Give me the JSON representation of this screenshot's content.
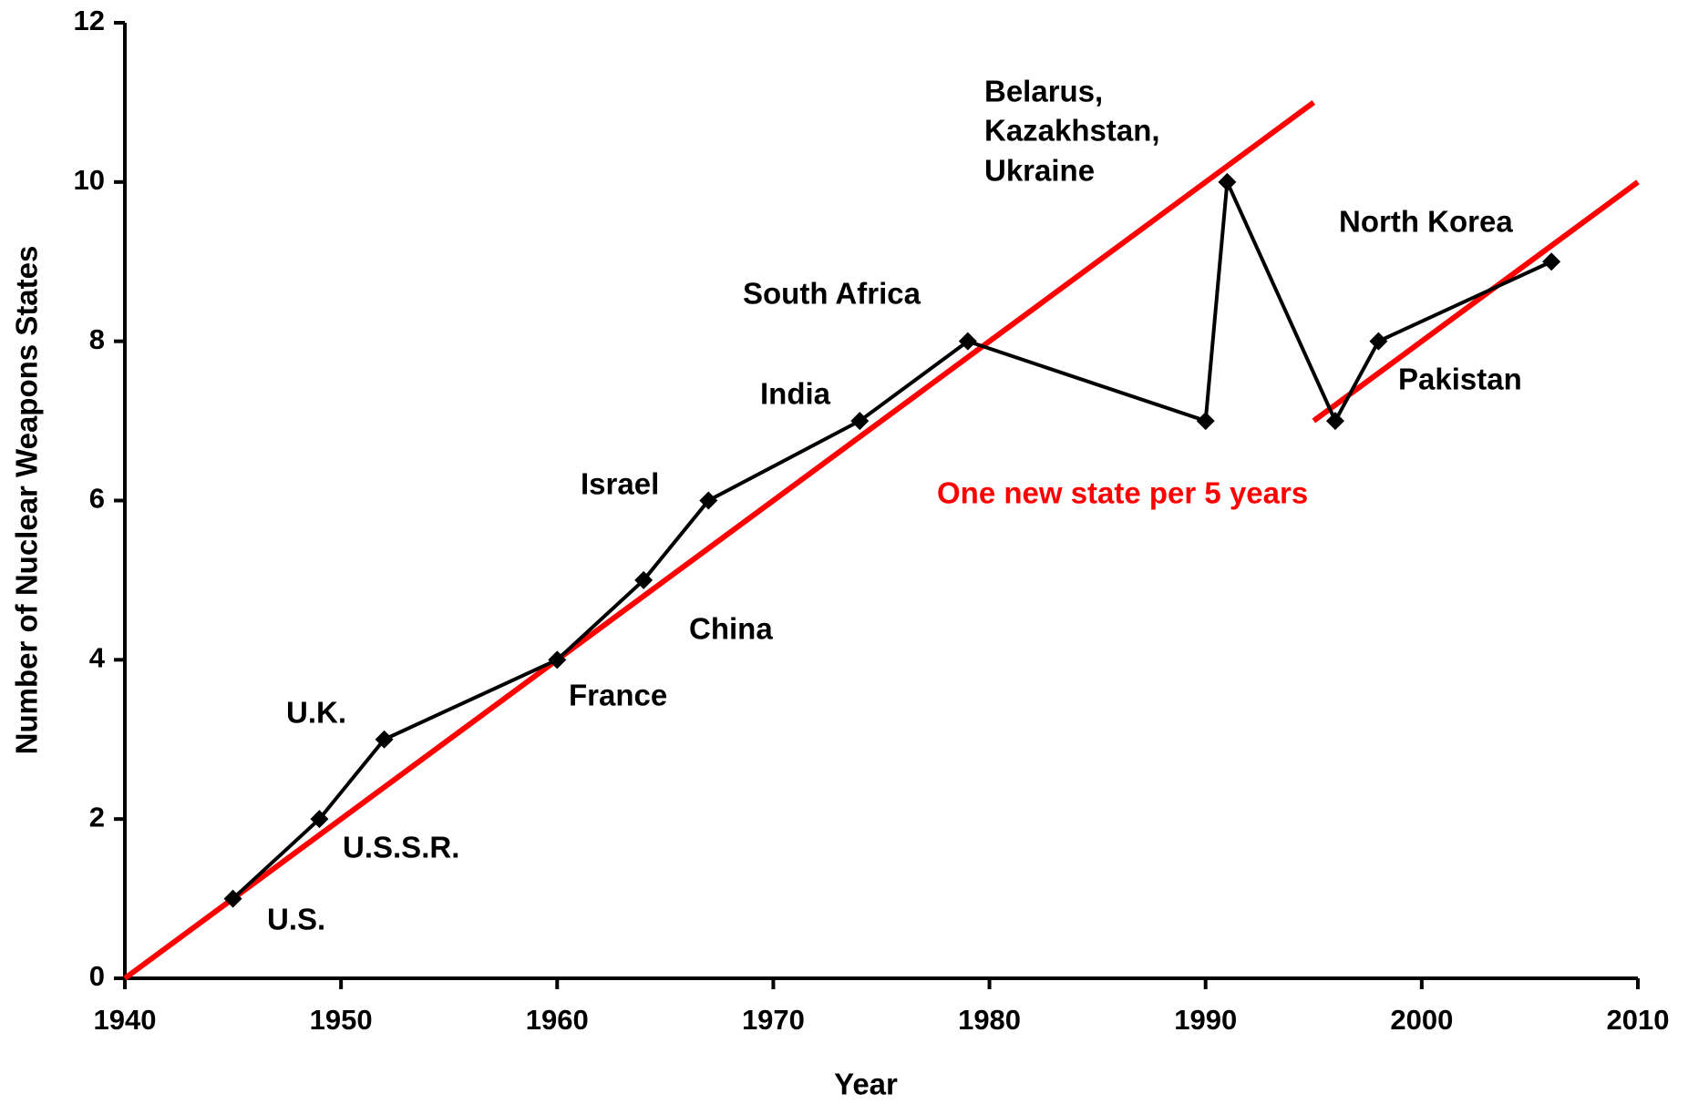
{
  "chart_data": {
    "type": "line",
    "x_label": "Year",
    "y_label": "Number of Nuclear Weapons States",
    "x": [
      1945,
      1949,
      1952,
      1960,
      1964,
      1967,
      1974,
      1979,
      1990,
      1991,
      1996,
      1998,
      2006
    ],
    "series": [
      {
        "color": "#000000",
        "values": [
          1,
          2,
          3,
          4,
          5,
          6,
          7,
          8,
          7,
          10,
          7,
          8,
          9
        ]
      }
    ],
    "trend_lines": [
      {
        "color": "#ff0000",
        "x": [
          1940,
          1995
        ],
        "values": [
          0,
          11
        ]
      },
      {
        "color": "#ff0000",
        "x": [
          1995,
          2010
        ],
        "values": [
          7,
          10
        ]
      }
    ],
    "annotations": [
      "U.S.",
      "U.S.S.R.",
      "U.K.",
      "France",
      "China",
      "Israel",
      "India",
      "South Africa",
      "Belarus,",
      "Kazakhstan,",
      "Ukraine",
      "North Korea",
      "Pakistan",
      "One new state per 5 years"
    ],
    "annotation_colors": [
      "#000000",
      "#000000",
      "#000000",
      "#000000",
      "#000000",
      "#000000",
      "#000000",
      "#000000",
      "#000000",
      "#000000",
      "#000000",
      "#000000",
      "#000000",
      "#ff0000"
    ],
    "xlim": [
      1940,
      2010
    ],
    "xticks": [
      1940,
      1950,
      1960,
      1970,
      1980,
      1990,
      2000,
      2010
    ],
    "ylim": [
      0,
      12
    ],
    "yticks": [
      0,
      2,
      4,
      6,
      8,
      10,
      12
    ],
    "grid": false
  }
}
